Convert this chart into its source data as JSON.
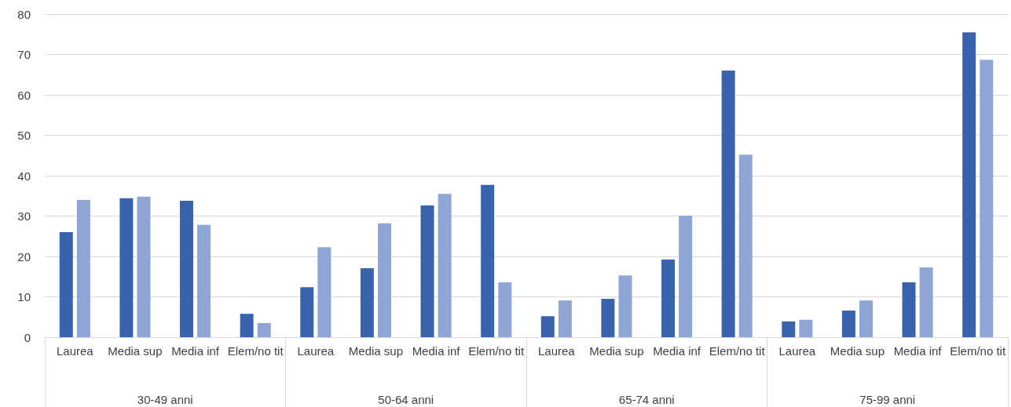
{
  "chart_data": {
    "type": "bar",
    "categories": [
      "Laurea",
      "Media sup",
      "Media inf",
      "Elem/no tit",
      "Laurea",
      "Media sup",
      "Media inf",
      "Elem/no tit",
      "Laurea",
      "Media sup",
      "Media inf",
      "Elem/no tit",
      "Laurea",
      "Media sup",
      "Media inf",
      "Elem/no tit"
    ],
    "annotations": [
      "30-49 anni",
      "50-64 anni",
      "65-74 anni",
      "75-99 anni"
    ],
    "series": [
      {
        "color": "#3a63ad",
        "values": [
          26.0,
          34.4,
          33.8,
          5.8,
          12.4,
          17.1,
          32.6,
          37.7,
          5.2,
          9.5,
          19.2,
          66.0,
          3.9,
          6.6,
          13.6,
          75.5
        ]
      },
      {
        "color": "#8ea5d6",
        "values": [
          34.0,
          34.8,
          27.8,
          3.5,
          22.3,
          28.2,
          35.5,
          13.6,
          9.1,
          15.3,
          30.1,
          45.2,
          4.3,
          9.1,
          17.3,
          68.7
        ]
      }
    ],
    "ylim": [
      0,
      80
    ],
    "yticks": [
      0,
      10,
      20,
      30,
      40,
      50,
      60,
      70,
      80
    ],
    "grid": "y"
  }
}
